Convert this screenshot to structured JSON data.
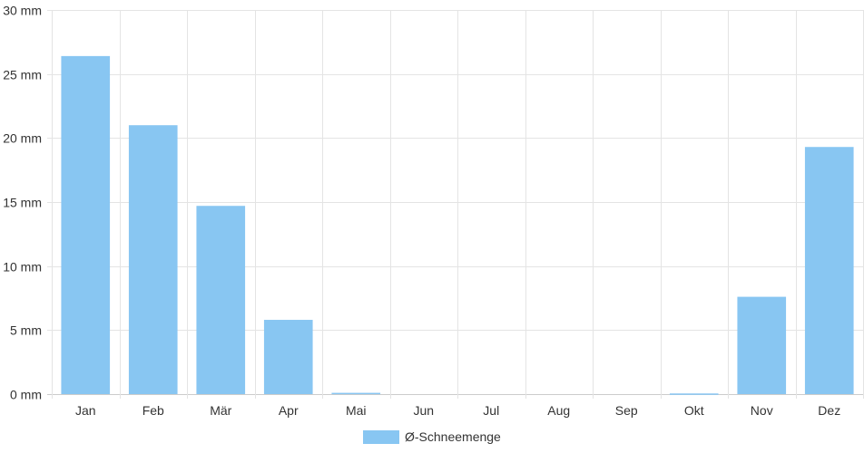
{
  "chart_data": {
    "type": "bar",
    "categories": [
      "Jan",
      "Feb",
      "Mär",
      "Apr",
      "Mai",
      "Jun",
      "Jul",
      "Aug",
      "Sep",
      "Okt",
      "Nov",
      "Dez"
    ],
    "series": [
      {
        "name": "Ø-Schneemenge",
        "values": [
          26.4,
          21.0,
          14.7,
          5.8,
          0.1,
          0,
          0,
          0,
          0,
          0.05,
          7.6,
          19.3
        ],
        "color": "#88c6f2"
      }
    ],
    "ylim": [
      0,
      30
    ],
    "y_ticks": [
      0,
      5,
      10,
      15,
      20,
      25,
      30
    ],
    "y_tick_labels": [
      "0 mm",
      "5 mm",
      "10 mm",
      "15 mm",
      "20 mm",
      "25 mm",
      "30 mm"
    ],
    "grid": true,
    "legend_position": "bottom-center",
    "title": "",
    "xlabel": "",
    "ylabel": ""
  }
}
